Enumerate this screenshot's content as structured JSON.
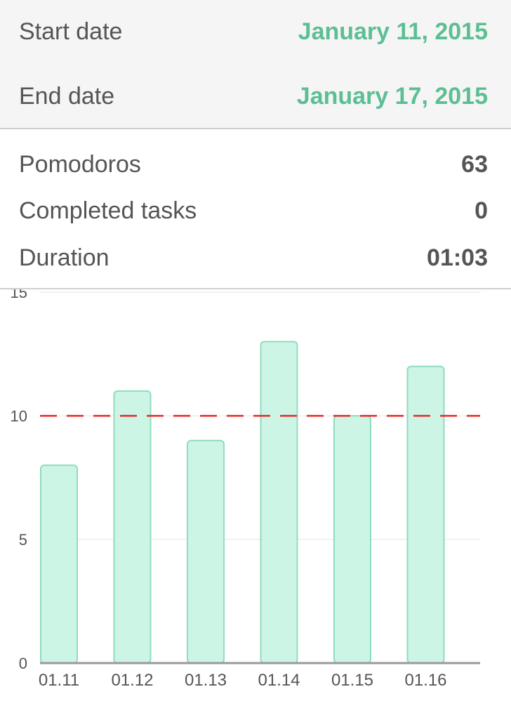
{
  "dates": {
    "start_label": "Start date",
    "start_value": "January 11, 2015",
    "end_label": "End date",
    "end_value": "January 17, 2015"
  },
  "stats": {
    "pomodoros_label": "Pomodoros",
    "pomodoros_value": "63",
    "completed_label": "Completed tasks",
    "completed_value": "0",
    "duration_label": "Duration",
    "duration_value": "01:03"
  },
  "colors": {
    "accent": "#5cbf93",
    "bar_fill": "#cdf5e6",
    "bar_stroke": "#8fdcbd",
    "target_line": "#e8231f"
  },
  "chart_data": {
    "type": "bar",
    "categories": [
      "01.11",
      "01.12",
      "01.13",
      "01.14",
      "01.15",
      "01.16"
    ],
    "values": [
      8,
      11,
      9,
      13,
      10,
      12
    ],
    "y_ticks": [
      "0",
      "5",
      "10",
      "15"
    ],
    "ylim": [
      0,
      15
    ],
    "target": 10,
    "grid": true,
    "title": "",
    "xlabel": "",
    "ylabel": ""
  }
}
